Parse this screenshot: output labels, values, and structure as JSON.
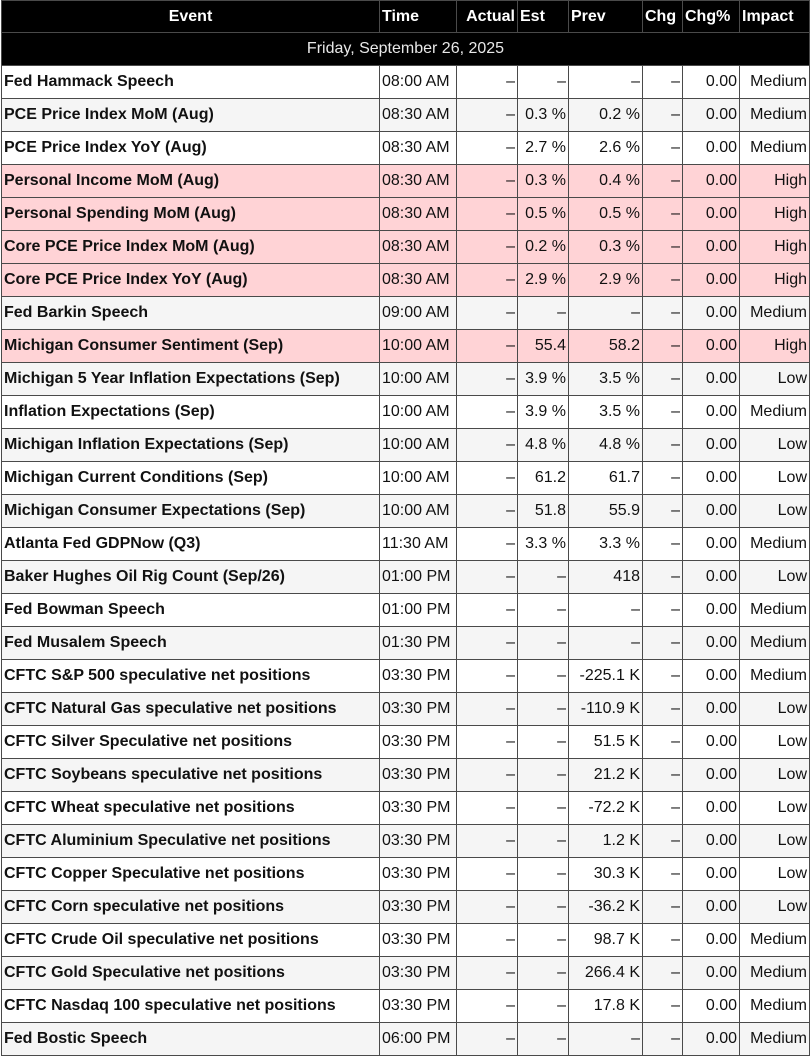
{
  "columns": {
    "event": "Event",
    "time": "Time",
    "actual": "Actual",
    "est": "Est",
    "prev": "Prev",
    "chg": "Chg",
    "chg_pct": "Chg%",
    "impact": "Impact"
  },
  "date": "Friday, September 26, 2025",
  "colors": {
    "header_bg": "#000000",
    "high_impact_row": "#ffd3d6",
    "alt_row": "#f5f5f5"
  },
  "rows": [
    {
      "event": "Fed Hammack Speech",
      "time": "08:00 AM",
      "actual": "–",
      "est": "–",
      "prev": "–",
      "chg": "–",
      "chg_pct": "0.00",
      "impact": "Medium"
    },
    {
      "event": "PCE Price Index MoM (Aug)",
      "time": "08:30 AM",
      "actual": "–",
      "est": "0.3 %",
      "prev": "0.2 %",
      "chg": "–",
      "chg_pct": "0.00",
      "impact": "Medium"
    },
    {
      "event": "PCE Price Index YoY (Aug)",
      "time": "08:30 AM",
      "actual": "–",
      "est": "2.7 %",
      "prev": "2.6 %",
      "chg": "–",
      "chg_pct": "0.00",
      "impact": "Medium"
    },
    {
      "event": "Personal Income MoM (Aug)",
      "time": "08:30 AM",
      "actual": "–",
      "est": "0.3 %",
      "prev": "0.4 %",
      "chg": "–",
      "chg_pct": "0.00",
      "impact": "High"
    },
    {
      "event": "Personal Spending MoM (Aug)",
      "time": "08:30 AM",
      "actual": "–",
      "est": "0.5 %",
      "prev": "0.5 %",
      "chg": "–",
      "chg_pct": "0.00",
      "impact": "High"
    },
    {
      "event": "Core PCE Price Index MoM (Aug)",
      "time": "08:30 AM",
      "actual": "–",
      "est": "0.2 %",
      "prev": "0.3 %",
      "chg": "–",
      "chg_pct": "0.00",
      "impact": "High"
    },
    {
      "event": "Core PCE Price Index YoY (Aug)",
      "time": "08:30 AM",
      "actual": "–",
      "est": "2.9 %",
      "prev": "2.9 %",
      "chg": "–",
      "chg_pct": "0.00",
      "impact": "High"
    },
    {
      "event": "Fed Barkin Speech",
      "time": "09:00 AM",
      "actual": "–",
      "est": "–",
      "prev": "–",
      "chg": "–",
      "chg_pct": "0.00",
      "impact": "Medium"
    },
    {
      "event": "Michigan Consumer Sentiment (Sep)",
      "time": "10:00 AM",
      "actual": "–",
      "est": "55.4",
      "prev": "58.2",
      "chg": "–",
      "chg_pct": "0.00",
      "impact": "High"
    },
    {
      "event": "Michigan 5 Year Inflation Expectations (Sep)",
      "time": "10:00 AM",
      "actual": "–",
      "est": "3.9 %",
      "prev": "3.5 %",
      "chg": "–",
      "chg_pct": "0.00",
      "impact": "Low"
    },
    {
      "event": "Inflation Expectations (Sep)",
      "time": "10:00 AM",
      "actual": "–",
      "est": "3.9 %",
      "prev": "3.5 %",
      "chg": "–",
      "chg_pct": "0.00",
      "impact": "Medium"
    },
    {
      "event": "Michigan Inflation Expectations (Sep)",
      "time": "10:00 AM",
      "actual": "–",
      "est": "4.8 %",
      "prev": "4.8 %",
      "chg": "–",
      "chg_pct": "0.00",
      "impact": "Low"
    },
    {
      "event": "Michigan Current Conditions (Sep)",
      "time": "10:00 AM",
      "actual": "–",
      "est": "61.2",
      "prev": "61.7",
      "chg": "–",
      "chg_pct": "0.00",
      "impact": "Low"
    },
    {
      "event": "Michigan Consumer Expectations (Sep)",
      "time": "10:00 AM",
      "actual": "–",
      "est": "51.8",
      "prev": "55.9",
      "chg": "–",
      "chg_pct": "0.00",
      "impact": "Low"
    },
    {
      "event": "Atlanta Fed GDPNow (Q3)",
      "time": "11:30 AM",
      "actual": "–",
      "est": "3.3 %",
      "prev": "3.3 %",
      "chg": "–",
      "chg_pct": "0.00",
      "impact": "Medium"
    },
    {
      "event": "Baker Hughes Oil Rig Count (Sep/26)",
      "time": "01:00 PM",
      "actual": "–",
      "est": "–",
      "prev": "418",
      "chg": "–",
      "chg_pct": "0.00",
      "impact": "Low"
    },
    {
      "event": "Fed Bowman Speech",
      "time": "01:00 PM",
      "actual": "–",
      "est": "–",
      "prev": "–",
      "chg": "–",
      "chg_pct": "0.00",
      "impact": "Medium"
    },
    {
      "event": "Fed Musalem Speech",
      "time": "01:30 PM",
      "actual": "–",
      "est": "–",
      "prev": "–",
      "chg": "–",
      "chg_pct": "0.00",
      "impact": "Medium"
    },
    {
      "event": "CFTC S&P 500 speculative net positions",
      "time": "03:30 PM",
      "actual": "–",
      "est": "–",
      "prev": "-225.1 K",
      "chg": "–",
      "chg_pct": "0.00",
      "impact": "Medium"
    },
    {
      "event": "CFTC Natural Gas speculative net positions",
      "time": "03:30 PM",
      "actual": "–",
      "est": "–",
      "prev": "-110.9 K",
      "chg": "–",
      "chg_pct": "0.00",
      "impact": "Low"
    },
    {
      "event": "CFTC Silver Speculative net positions",
      "time": "03:30 PM",
      "actual": "–",
      "est": "–",
      "prev": "51.5 K",
      "chg": "–",
      "chg_pct": "0.00",
      "impact": "Low"
    },
    {
      "event": "CFTC Soybeans speculative net positions",
      "time": "03:30 PM",
      "actual": "–",
      "est": "–",
      "prev": "21.2 K",
      "chg": "–",
      "chg_pct": "0.00",
      "impact": "Low"
    },
    {
      "event": "CFTC Wheat speculative net positions",
      "time": "03:30 PM",
      "actual": "–",
      "est": "–",
      "prev": "-72.2 K",
      "chg": "–",
      "chg_pct": "0.00",
      "impact": "Low"
    },
    {
      "event": "CFTC Aluminium Speculative net positions",
      "time": "03:30 PM",
      "actual": "–",
      "est": "–",
      "prev": "1.2 K",
      "chg": "–",
      "chg_pct": "0.00",
      "impact": "Low"
    },
    {
      "event": "CFTC Copper Speculative net positions",
      "time": "03:30 PM",
      "actual": "–",
      "est": "–",
      "prev": "30.3 K",
      "chg": "–",
      "chg_pct": "0.00",
      "impact": "Low"
    },
    {
      "event": "CFTC Corn speculative net positions",
      "time": "03:30 PM",
      "actual": "–",
      "est": "–",
      "prev": "-36.2 K",
      "chg": "–",
      "chg_pct": "0.00",
      "impact": "Low"
    },
    {
      "event": "CFTC Crude Oil speculative net positions",
      "time": "03:30 PM",
      "actual": "–",
      "est": "–",
      "prev": "98.7 K",
      "chg": "–",
      "chg_pct": "0.00",
      "impact": "Medium"
    },
    {
      "event": "CFTC Gold Speculative net positions",
      "time": "03:30 PM",
      "actual": "–",
      "est": "–",
      "prev": "266.4 K",
      "chg": "–",
      "chg_pct": "0.00",
      "impact": "Medium"
    },
    {
      "event": "CFTC Nasdaq 100 speculative net positions",
      "time": "03:30 PM",
      "actual": "–",
      "est": "–",
      "prev": "17.8 K",
      "chg": "–",
      "chg_pct": "0.00",
      "impact": "Medium"
    },
    {
      "event": "Fed Bostic Speech",
      "time": "06:00 PM",
      "actual": "–",
      "est": "–",
      "prev": "–",
      "chg": "–",
      "chg_pct": "0.00",
      "impact": "Medium"
    }
  ]
}
